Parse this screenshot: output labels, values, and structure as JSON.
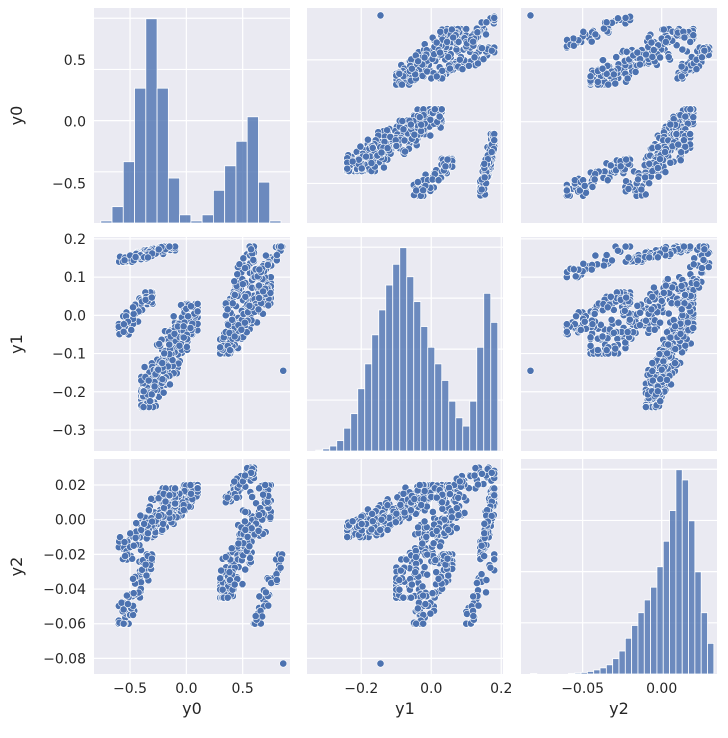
{
  "chart_data": {
    "type": "scatter",
    "kind": "pairplot",
    "style": {
      "background": "#eaeaf2",
      "grid": true,
      "grid_color": "#ffffff",
      "point_color": "#4c72b0",
      "hist_color": "#4c72b0"
    },
    "variables": [
      "y0",
      "y1",
      "y2"
    ],
    "axes": {
      "y0": {
        "label": "y0",
        "range": [
          -0.82,
          0.92
        ],
        "ticks": [
          -0.5,
          0.0,
          0.5
        ],
        "tick_labels": [
          "−0.5",
          "0.0",
          "0.5"
        ]
      },
      "y1": {
        "label": "y1",
        "range": [
          -0.355,
          0.205
        ],
        "ticks": [
          -0.3,
          -0.2,
          -0.1,
          0.0,
          0.1,
          0.2
        ],
        "tick_labels": [
          "−0.3",
          "−0.2",
          "−0.1",
          "0.0",
          "0.1",
          "0.2"
        ],
        "x_ticks": [
          -0.2,
          0.0,
          0.2
        ],
        "x_tick_labels": [
          "−0.2",
          "0.0",
          "0.2"
        ]
      },
      "y2": {
        "label": "y2",
        "range": [
          -0.089,
          0.035
        ],
        "ticks": [
          -0.08,
          -0.06,
          -0.04,
          -0.02,
          0.0,
          0.02
        ],
        "tick_labels": [
          "−0.08",
          "−0.06",
          "−0.04",
          "−0.02",
          "0.00",
          "0.02"
        ],
        "x_ticks": [
          -0.05,
          0.0
        ],
        "x_tick_labels": [
          "−0.05",
          "0.00"
        ]
      }
    },
    "histograms": {
      "y0": {
        "bin_edges": [
          -0.76,
          -0.66,
          -0.56,
          -0.46,
          -0.36,
          -0.26,
          -0.16,
          -0.06,
          0.04,
          0.14,
          0.24,
          0.34,
          0.44,
          0.54,
          0.64,
          0.74,
          0.84
        ],
        "counts": [
          5,
          40,
          150,
          330,
          500,
          330,
          110,
          20,
          5,
          20,
          80,
          140,
          200,
          260,
          100,
          5
        ]
      },
      "y1": {
        "bin_edges": [
          -0.33,
          -0.31,
          -0.29,
          -0.27,
          -0.25,
          -0.23,
          -0.21,
          -0.19,
          -0.17,
          -0.15,
          -0.13,
          -0.11,
          -0.09,
          -0.07,
          -0.05,
          -0.03,
          -0.01,
          0.01,
          0.03,
          0.05,
          0.07,
          0.09,
          0.11,
          0.13,
          0.15,
          0.17,
          0.19
        ],
        "counts": [
          2,
          5,
          12,
          25,
          55,
          90,
          150,
          210,
          280,
          340,
          400,
          450,
          490,
          420,
          360,
          300,
          250,
          210,
          170,
          120,
          80,
          60,
          120,
          250,
          380,
          310
        ]
      },
      "y2": {
        "bin_edges": [
          -0.083,
          -0.079,
          -0.075,
          -0.071,
          -0.067,
          -0.063,
          -0.059,
          -0.055,
          -0.051,
          -0.047,
          -0.043,
          -0.039,
          -0.035,
          -0.031,
          -0.027,
          -0.023,
          -0.019,
          -0.015,
          -0.011,
          -0.007,
          -0.003,
          0.001,
          0.005,
          0.009,
          0.013,
          0.017,
          0.021,
          0.025,
          0.029,
          0.033
        ],
        "counts": [
          1,
          0,
          0,
          0,
          0,
          0,
          1,
          2,
          3,
          5,
          8,
          12,
          18,
          30,
          45,
          70,
          95,
          120,
          145,
          170,
          210,
          260,
          320,
          400,
          380,
          300,
          200,
          120,
          60,
          25
        ]
      }
    },
    "curve_segments": [
      {
        "name": "",
        "n": 280,
        "y0": [
          -0.4,
          0.1
        ],
        "y1": [
          -0.24,
          0.03
        ],
        "y2": [
          -0.01,
          0.02
        ]
      },
      {
        "name": "",
        "n": 100,
        "y0": [
          -0.6,
          -0.1
        ],
        "y1": [
          0.14,
          0.18
        ],
        "y2": [
          -0.023,
          0.018
        ]
      },
      {
        "name": "",
        "n": 180,
        "y0": [
          0.3,
          0.75
        ],
        "y1": [
          -0.1,
          0.1
        ],
        "y2": [
          -0.045,
          0.02
        ]
      },
      {
        "name": "",
        "n": 80,
        "y0": [
          -0.6,
          -0.3
        ],
        "y1": [
          -0.05,
          0.06
        ],
        "y2": [
          -0.06,
          -0.02
        ]
      },
      {
        "name": "",
        "n": 60,
        "y0": [
          0.35,
          0.6
        ],
        "y1": [
          0.0,
          0.18
        ],
        "y2": [
          0.01,
          0.03
        ]
      },
      {
        "name": "",
        "n": 40,
        "y0": [
          0.6,
          0.85
        ],
        "y1": [
          0.1,
          0.18
        ],
        "y2": [
          -0.06,
          -0.02
        ]
      }
    ],
    "outlier": {
      "y0": 0.86,
      "y1": -0.145,
      "y2": -0.083
    }
  }
}
